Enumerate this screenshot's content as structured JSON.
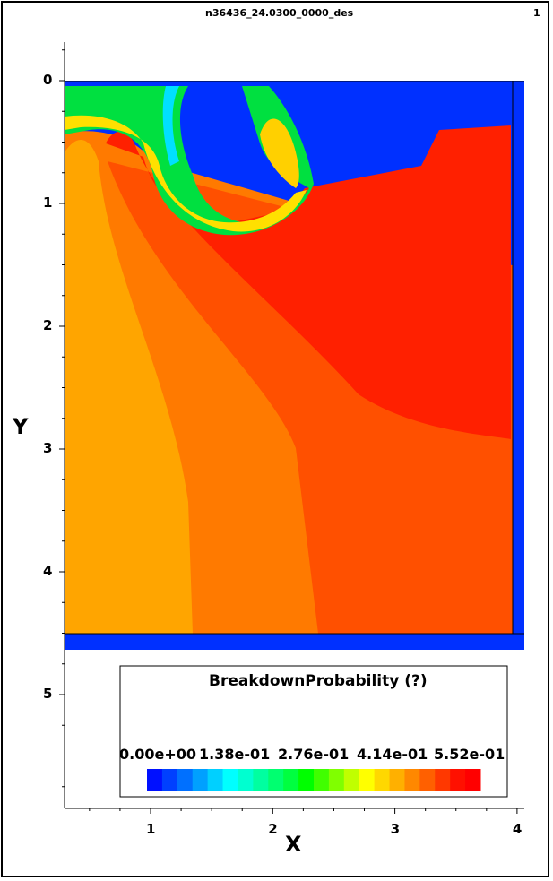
{
  "header": {
    "filename": "n36436_24.0300_0000_des",
    "page_number": "1"
  },
  "chart_data": {
    "type": "heatmap",
    "xlabel": "X",
    "ylabel": "Y",
    "x_ticks": [
      1,
      2,
      3,
      4
    ],
    "y_ticks": [
      0,
      1,
      2,
      3,
      4,
      5
    ],
    "x_tick_labels": [
      "1",
      "2",
      "3",
      "4"
    ],
    "y_tick_labels": [
      "0",
      "1",
      "2",
      "3",
      "4",
      "5"
    ],
    "xlim": [
      0.3,
      4.05
    ],
    "ylim": [
      5.9,
      -0.35
    ],
    "device_extent": {
      "x": [
        0.3,
        4.05
      ],
      "y": [
        -0.05,
        4.6
      ]
    },
    "colorbar": {
      "title": "BreakdownProbability (?)",
      "tick_labels": [
        "0.00e+00",
        "1.38e-01",
        "2.76e-01",
        "4.14e-01",
        "5.52e-01"
      ],
      "range": [
        0.0,
        0.552
      ],
      "colors": [
        "#0010ff",
        "#0040ff",
        "#0070ff",
        "#00a0ff",
        "#00d0ff",
        "#00ffff",
        "#00ffd0",
        "#00ffa0",
        "#00ff70",
        "#00ff40",
        "#00ff00",
        "#40ff00",
        "#80ff00",
        "#c0ff00",
        "#ffff00",
        "#ffd800",
        "#ffb000",
        "#ff8800",
        "#ff6000",
        "#ff3800",
        "#ff1000",
        "#ff0000"
      ]
    },
    "regions": [
      {
        "name": "depleted-blue",
        "value": 0.0,
        "color": "#0030ff"
      },
      {
        "name": "mid-orange",
        "value": 0.48,
        "color": "#ffa500"
      },
      {
        "name": "orange",
        "value": 0.5,
        "color": "#ff7a00"
      },
      {
        "name": "dark-orange",
        "value": 0.52,
        "color": "#ff5000"
      },
      {
        "name": "red",
        "value": 0.55,
        "color": "#ff2000"
      }
    ]
  }
}
